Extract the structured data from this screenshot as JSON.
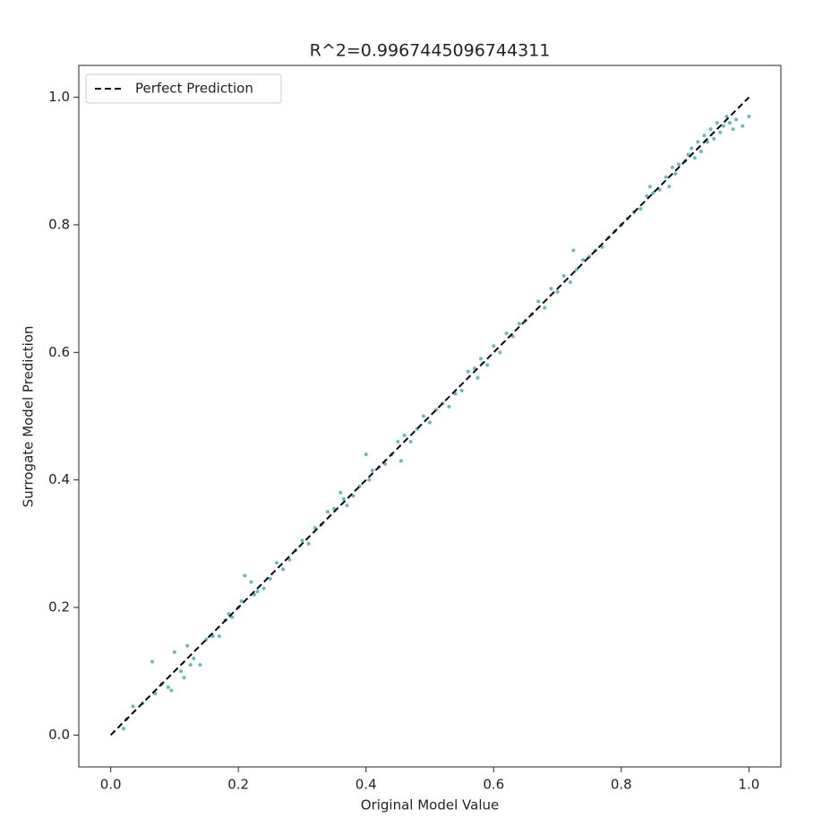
{
  "chart_data": {
    "type": "scatter",
    "title": "R^2=0.9967445096744311",
    "xlabel": "Original Model Value",
    "ylabel": "Surrogate Model Prediction",
    "xlim": [
      -0.05,
      1.05
    ],
    "ylim": [
      -0.05,
      1.05
    ],
    "xticks": [
      {
        "value": 0,
        "label": "0.0"
      },
      0.2,
      0.4,
      0.6,
      0.8,
      {
        "value": 1,
        "label": "1.0"
      }
    ],
    "yticks": [
      {
        "value": 0,
        "label": "0.0"
      },
      0.2,
      0.4,
      0.6,
      0.8,
      {
        "value": 1,
        "label": "1.0"
      }
    ],
    "legend": "upper left",
    "series": [
      {
        "kind": "scatter",
        "color": "#6ab7bf",
        "x": [
          0.02,
          0.025,
          0.035,
          0.05,
          0.065,
          0.07,
          0.08,
          0.09,
          0.095,
          0.1,
          0.11,
          0.115,
          0.12,
          0.125,
          0.13,
          0.14,
          0.15,
          0.16,
          0.17,
          0.18,
          0.185,
          0.19,
          0.2,
          0.205,
          0.21,
          0.22,
          0.225,
          0.23,
          0.24,
          0.25,
          0.26,
          0.27,
          0.28,
          0.29,
          0.3,
          0.31,
          0.32,
          0.33,
          0.34,
          0.35,
          0.36,
          0.365,
          0.37,
          0.38,
          0.39,
          0.4,
          0.405,
          0.41,
          0.42,
          0.43,
          0.44,
          0.45,
          0.455,
          0.46,
          0.47,
          0.48,
          0.49,
          0.5,
          0.51,
          0.52,
          0.53,
          0.54,
          0.55,
          0.56,
          0.57,
          0.575,
          0.58,
          0.59,
          0.6,
          0.61,
          0.62,
          0.63,
          0.64,
          0.65,
          0.66,
          0.67,
          0.68,
          0.69,
          0.7,
          0.71,
          0.72,
          0.725,
          0.73,
          0.74,
          0.75,
          0.76,
          0.77,
          0.78,
          0.79,
          0.8,
          0.81,
          0.82,
          0.83,
          0.84,
          0.845,
          0.85,
          0.86,
          0.87,
          0.875,
          0.88,
          0.885,
          0.89,
          0.9,
          0.905,
          0.91,
          0.915,
          0.92,
          0.925,
          0.93,
          0.935,
          0.94,
          0.945,
          0.95,
          0.955,
          0.96,
          0.965,
          0.97,
          0.975,
          0.98,
          0.99,
          1.0
        ],
        "y": [
          0.01,
          0.025,
          0.045,
          0.05,
          0.115,
          0.065,
          0.08,
          0.075,
          0.07,
          0.13,
          0.1,
          0.09,
          0.14,
          0.11,
          0.12,
          0.11,
          0.15,
          0.155,
          0.155,
          0.18,
          0.19,
          0.185,
          0.2,
          0.21,
          0.25,
          0.24,
          0.22,
          0.225,
          0.23,
          0.245,
          0.27,
          0.26,
          0.275,
          0.29,
          0.305,
          0.3,
          0.325,
          0.33,
          0.35,
          0.355,
          0.38,
          0.37,
          0.36,
          0.375,
          0.39,
          0.44,
          0.4,
          0.415,
          0.42,
          0.425,
          0.44,
          0.46,
          0.43,
          0.47,
          0.46,
          0.48,
          0.5,
          0.49,
          0.51,
          0.52,
          0.515,
          0.535,
          0.54,
          0.57,
          0.575,
          0.56,
          0.59,
          0.58,
          0.61,
          0.6,
          0.63,
          0.625,
          0.645,
          0.65,
          0.66,
          0.68,
          0.67,
          0.7,
          0.695,
          0.72,
          0.71,
          0.76,
          0.73,
          0.745,
          0.75,
          0.76,
          0.765,
          0.78,
          0.79,
          0.8,
          0.81,
          0.82,
          0.825,
          0.845,
          0.86,
          0.85,
          0.855,
          0.875,
          0.86,
          0.89,
          0.88,
          0.895,
          0.9,
          0.91,
          0.92,
          0.905,
          0.93,
          0.915,
          0.94,
          0.93,
          0.95,
          0.935,
          0.96,
          0.945,
          0.955,
          0.97,
          0.96,
          0.95,
          0.965,
          0.955,
          0.97
        ]
      },
      {
        "kind": "line",
        "name": "Perfect Prediction",
        "color": "#000000",
        "dash": true,
        "x": [
          0,
          1
        ],
        "y": [
          0,
          1
        ]
      }
    ]
  }
}
